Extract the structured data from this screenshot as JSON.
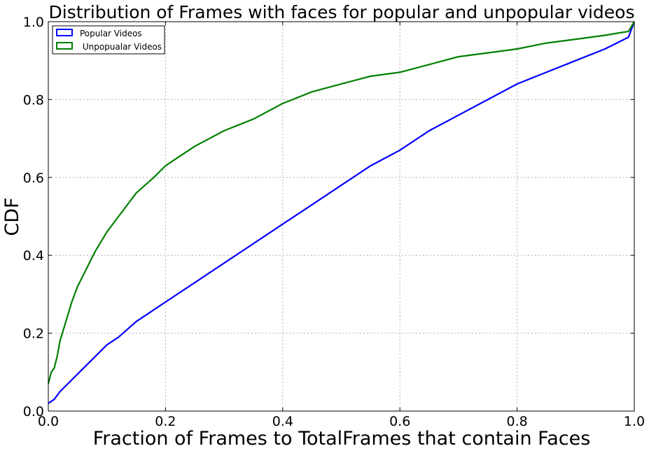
{
  "chart_data": {
    "type": "line",
    "title": "Distribution of Frames with faces for popular and unpopular videos",
    "xlabel": "Fraction of Frames to TotalFrames that contain Faces",
    "ylabel": "CDF",
    "xlim": [
      0.0,
      1.0
    ],
    "ylim": [
      0.0,
      1.0
    ],
    "xticks": [
      "0.0",
      "0.2",
      "0.4",
      "0.6",
      "0.8",
      "1.0"
    ],
    "yticks": [
      "0.0",
      "0.2",
      "0.4",
      "0.6",
      "0.8",
      "1.0"
    ],
    "grid": true,
    "legend_position": "top-left",
    "series": [
      {
        "name": "Popular Videos",
        "color": "#0000ff",
        "x": [
          0.0,
          0.01,
          0.02,
          0.04,
          0.06,
          0.08,
          0.1,
          0.12,
          0.15,
          0.18,
          0.2,
          0.25,
          0.3,
          0.35,
          0.4,
          0.45,
          0.5,
          0.55,
          0.6,
          0.65,
          0.7,
          0.75,
          0.8,
          0.85,
          0.9,
          0.95,
          0.99,
          1.0
        ],
        "y": [
          0.02,
          0.03,
          0.05,
          0.08,
          0.11,
          0.14,
          0.17,
          0.19,
          0.23,
          0.26,
          0.28,
          0.33,
          0.38,
          0.43,
          0.48,
          0.53,
          0.58,
          0.63,
          0.67,
          0.72,
          0.76,
          0.8,
          0.84,
          0.87,
          0.9,
          0.93,
          0.96,
          1.0
        ]
      },
      {
        "name": " Unpopualar Videos",
        "color": "#008000",
        "x": [
          0.0,
          0.005,
          0.01,
          0.015,
          0.02,
          0.03,
          0.04,
          0.05,
          0.06,
          0.07,
          0.08,
          0.1,
          0.12,
          0.15,
          0.18,
          0.2,
          0.25,
          0.3,
          0.35,
          0.4,
          0.45,
          0.5,
          0.55,
          0.6,
          0.65,
          0.7,
          0.75,
          0.8,
          0.85,
          0.9,
          0.95,
          0.99,
          1.0
        ],
        "y": [
          0.07,
          0.1,
          0.11,
          0.14,
          0.18,
          0.23,
          0.28,
          0.32,
          0.35,
          0.38,
          0.41,
          0.46,
          0.5,
          0.56,
          0.6,
          0.63,
          0.68,
          0.72,
          0.75,
          0.79,
          0.82,
          0.84,
          0.86,
          0.87,
          0.89,
          0.91,
          0.92,
          0.93,
          0.945,
          0.955,
          0.965,
          0.975,
          1.0
        ]
      }
    ]
  }
}
